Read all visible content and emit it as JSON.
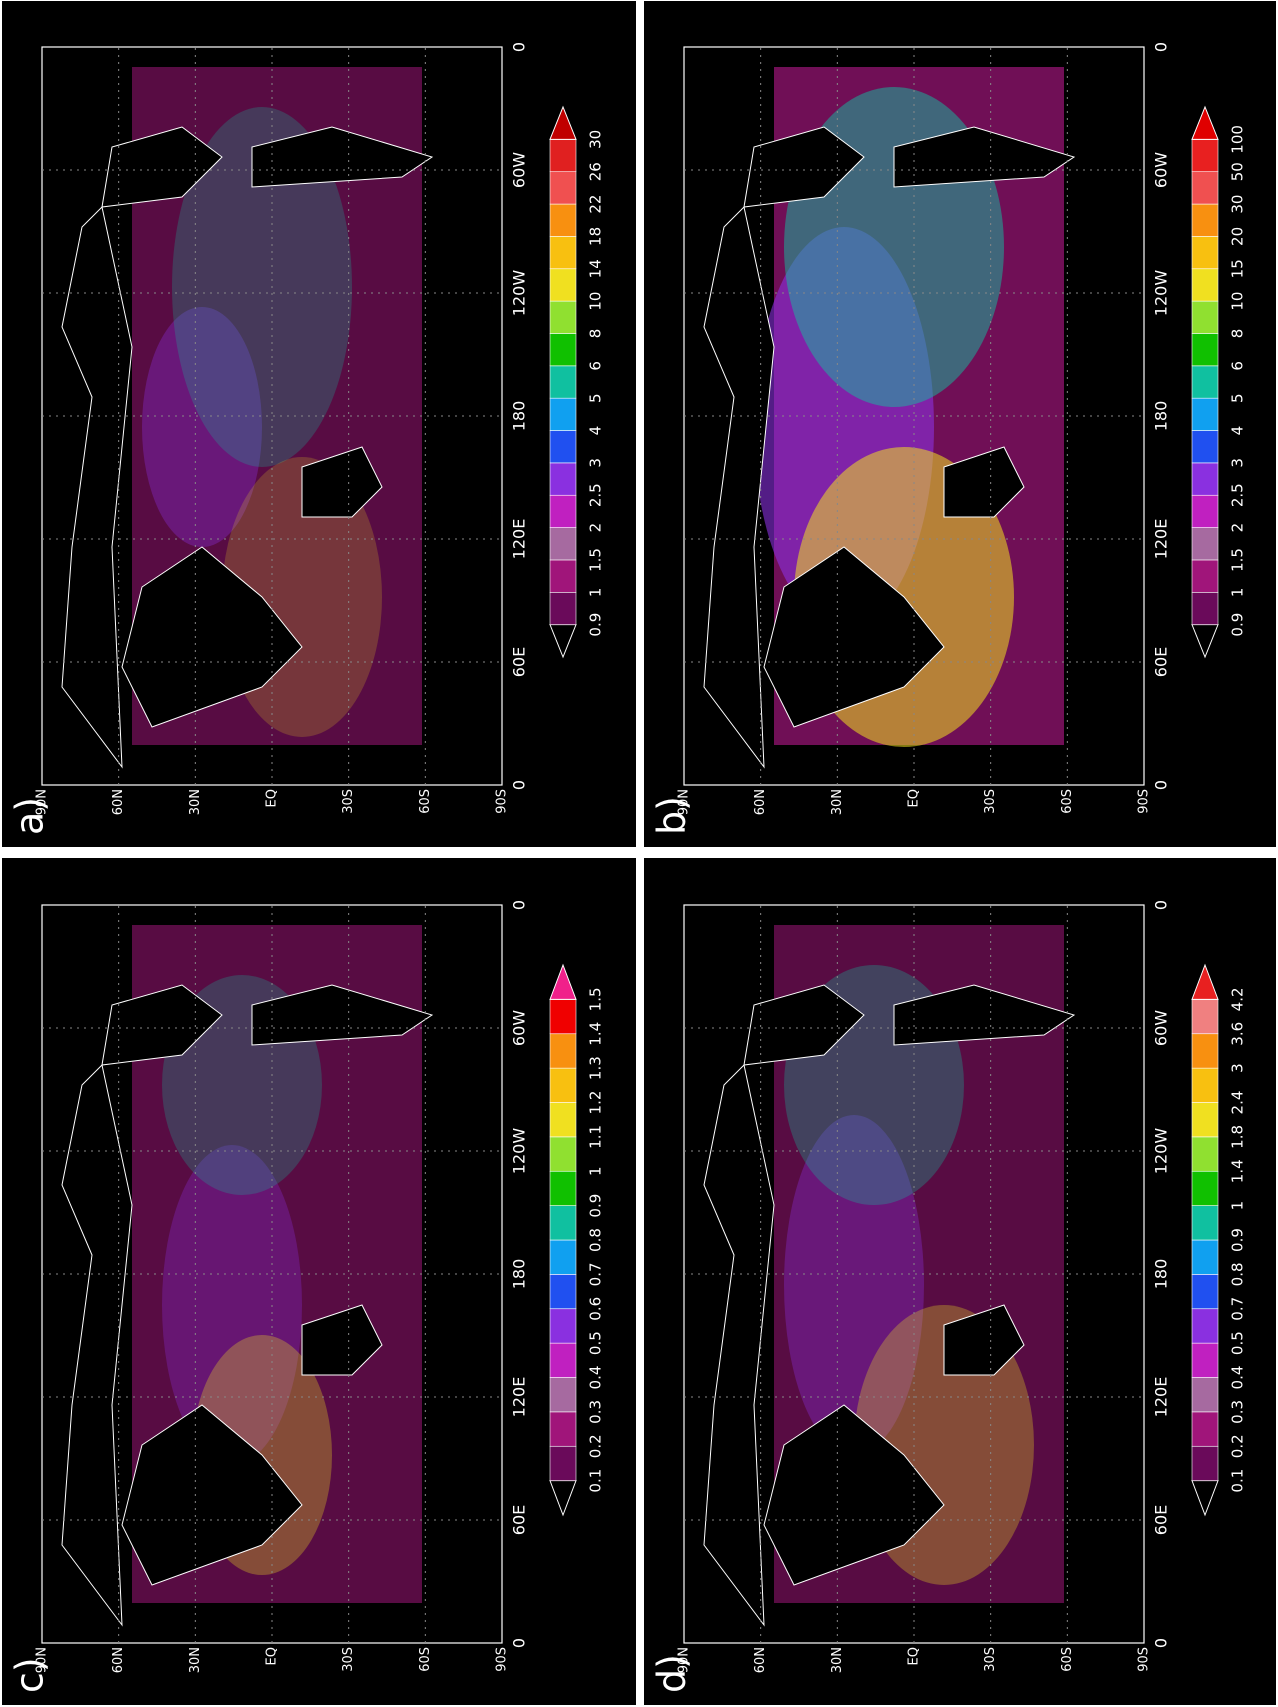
{
  "lat_labels": [
    "90N",
    "60N",
    "30N",
    "EQ",
    "30S",
    "60S",
    "90S"
  ],
  "lon_labels": [
    "0",
    "60E",
    "120E",
    "180",
    "120W",
    "60W",
    "0"
  ],
  "panels": [
    {
      "label": "a)",
      "colorbar": {
        "levels": [
          0.9,
          1,
          1.5,
          2,
          2.5,
          3,
          4,
          5,
          6,
          8,
          10,
          14,
          18,
          22,
          26,
          30
        ],
        "colors": [
          "#000000",
          "#6a0a5a",
          "#a0157a",
          "#a66aa0",
          "#c020c0",
          "#8a30e0",
          "#2050f0",
          "#10a0f0",
          "#10c0a0",
          "#10c000",
          "#90e030",
          "#f0e020",
          "#f8c010",
          "#f89010",
          "#f05050",
          "#e02020",
          "#c00000"
        ]
      }
    },
    {
      "label": "b)",
      "colorbar": {
        "levels": [
          0.9,
          1,
          1.5,
          2,
          2.5,
          3,
          4,
          5,
          6,
          8,
          10,
          15,
          20,
          30,
          50,
          100
        ],
        "colors": [
          "#000000",
          "#6a0a5a",
          "#a0157a",
          "#a66aa0",
          "#c020c0",
          "#8a30e0",
          "#2050f0",
          "#10a0f0",
          "#10c0a0",
          "#10c000",
          "#90e030",
          "#f0e020",
          "#f8c010",
          "#f89010",
          "#f05050",
          "#e82020",
          "#e00000"
        ]
      }
    },
    {
      "label": "c)",
      "colorbar": {
        "levels": [
          0.1,
          0.2,
          0.3,
          0.4,
          0.5,
          0.6,
          0.7,
          0.8,
          0.9,
          1,
          1.1,
          1.2,
          1.3,
          1.4,
          1.5
        ],
        "colors": [
          "#000000",
          "#6a0a5a",
          "#a0157a",
          "#a66aa0",
          "#c020c0",
          "#8a30e0",
          "#2050f0",
          "#10a0f0",
          "#10c0a0",
          "#10c000",
          "#90e030",
          "#f0e020",
          "#f8c010",
          "#f89010",
          "#f00000",
          "#f0208a"
        ]
      }
    },
    {
      "label": "d)",
      "colorbar": {
        "levels": [
          0.1,
          0.2,
          0.3,
          0.4,
          0.5,
          0.7,
          0.8,
          0.9,
          1,
          1.4,
          1.8,
          2.4,
          3,
          3.6,
          4.2
        ],
        "colors": [
          "#000000",
          "#6a0a5a",
          "#a0157a",
          "#a66aa0",
          "#c020c0",
          "#8a30e0",
          "#2050f0",
          "#10a0f0",
          "#10c0a0",
          "#10c000",
          "#90e030",
          "#f0e020",
          "#f8c010",
          "#f89010",
          "#f08080",
          "#e82020"
        ]
      }
    }
  ]
}
